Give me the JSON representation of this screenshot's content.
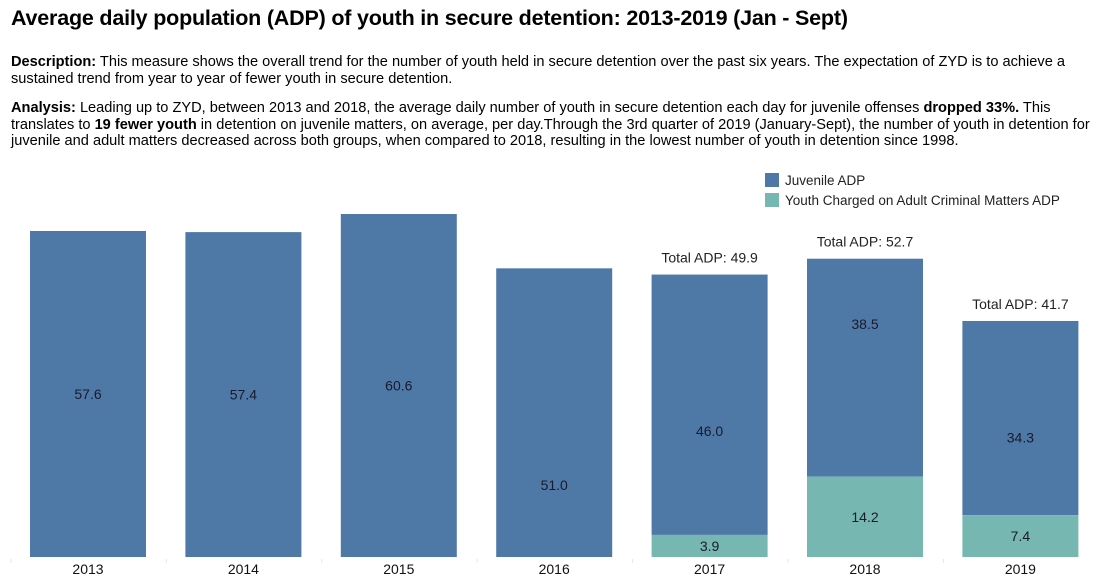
{
  "header": {
    "title": "Average daily population (ADP) of youth in secure detention: 2013-2019 (Jan - Sept)"
  },
  "description": {
    "label": "Description:",
    "text": " This measure shows the overall trend for the number of youth held in secure detention over the past six years.  The expectation of ZYD is to achieve a sustained trend from year to year of fewer youth in secure detention."
  },
  "analysis": {
    "label": "Analysis:",
    "text1": " Leading up to ZYD, between 2013 and 2018, the average daily number of youth in secure detention each day for juvenile offenses ",
    "bold1": "dropped 33%.",
    "text2": " This translates to ",
    "bold2": "19 fewer youth",
    "text3": " in detention on juvenile matters, on average, per day.Through the 3rd quarter of 2019 (January-Sept), the number of youth in detention for juvenile and adult matters decreased across both groups, when compared to 2018, resulting in the lowest number of youth in detention since 1998."
  },
  "colors": {
    "juvenile": "#4e79a7",
    "adult": "#76b7b2"
  },
  "chart_data": {
    "type": "bar",
    "stacked": true,
    "title": "Average daily population (ADP) of youth in secure detention: 2013-2019 (Jan - Sept)",
    "xlabel": "",
    "ylabel": "",
    "ylim": [
      0,
      62
    ],
    "grid": false,
    "legend_position": "top-right",
    "categories": [
      "2013",
      "2014",
      "2015",
      "2016",
      "2017",
      "2018",
      "2019"
    ],
    "series": [
      {
        "name": "Juvenile ADP",
        "color": "#4e79a7",
        "values": [
          57.6,
          57.4,
          60.6,
          51.0,
          46.0,
          38.5,
          34.3
        ],
        "labels": [
          "57.6",
          "57.4",
          "60.6",
          "51.0",
          "46.0",
          "38.5",
          "34.3"
        ]
      },
      {
        "name": "Youth Charged on Adult Criminal Matters ADP",
        "color": "#76b7b2",
        "values": [
          null,
          null,
          null,
          null,
          3.9,
          14.2,
          7.4
        ],
        "labels": [
          "",
          "",
          "",
          "",
          "3.9",
          "14.2",
          "7.4"
        ]
      }
    ],
    "totals": [
      null,
      null,
      null,
      null,
      49.9,
      52.7,
      41.7
    ],
    "total_labels": [
      "",
      "",
      "",
      "",
      "Total ADP: 49.9",
      "Total ADP: 52.7",
      "Total ADP: 41.7"
    ],
    "value_label_offsets": [
      0.5,
      0.5,
      0.5,
      0.75,
      0.6,
      0.3,
      0.6
    ]
  }
}
